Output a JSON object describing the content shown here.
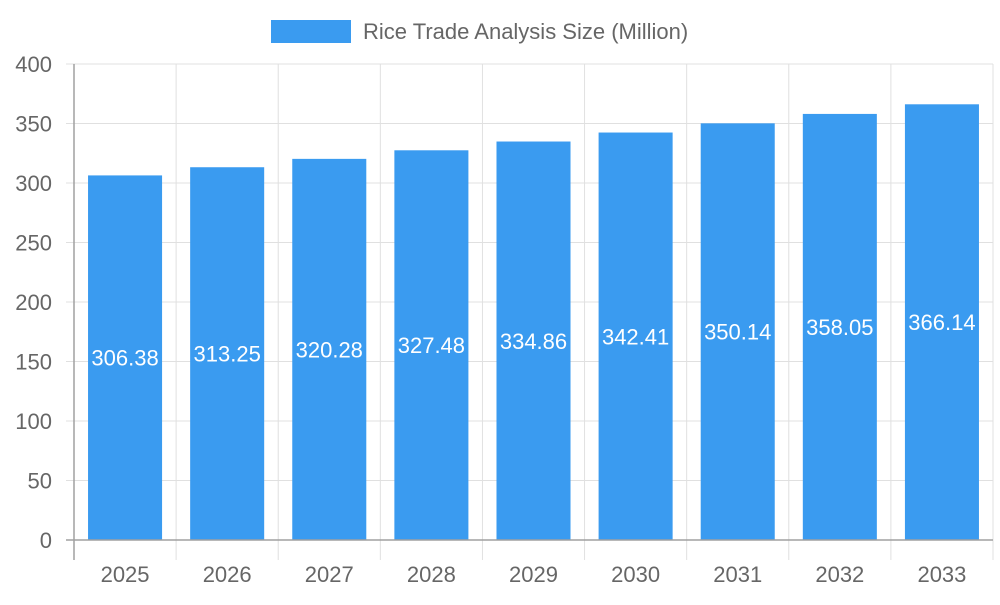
{
  "chart_data": {
    "type": "bar",
    "title": "",
    "xlabel": "",
    "ylabel": "",
    "categories": [
      "2025",
      "2026",
      "2027",
      "2028",
      "2029",
      "2030",
      "2031",
      "2032",
      "2033"
    ],
    "series": [
      {
        "name": "Rice Trade Analysis Size (Million)",
        "values": [
          306.38,
          313.25,
          320.28,
          327.48,
          334.86,
          342.41,
          350.14,
          358.05,
          366.14
        ],
        "color": "#3a9bf0"
      }
    ],
    "ylim": [
      0,
      400
    ],
    "yticks": [
      0,
      50,
      100,
      150,
      200,
      250,
      300,
      350,
      400
    ],
    "grid": true,
    "legend": "top-center",
    "data_labels": "inside-center"
  }
}
